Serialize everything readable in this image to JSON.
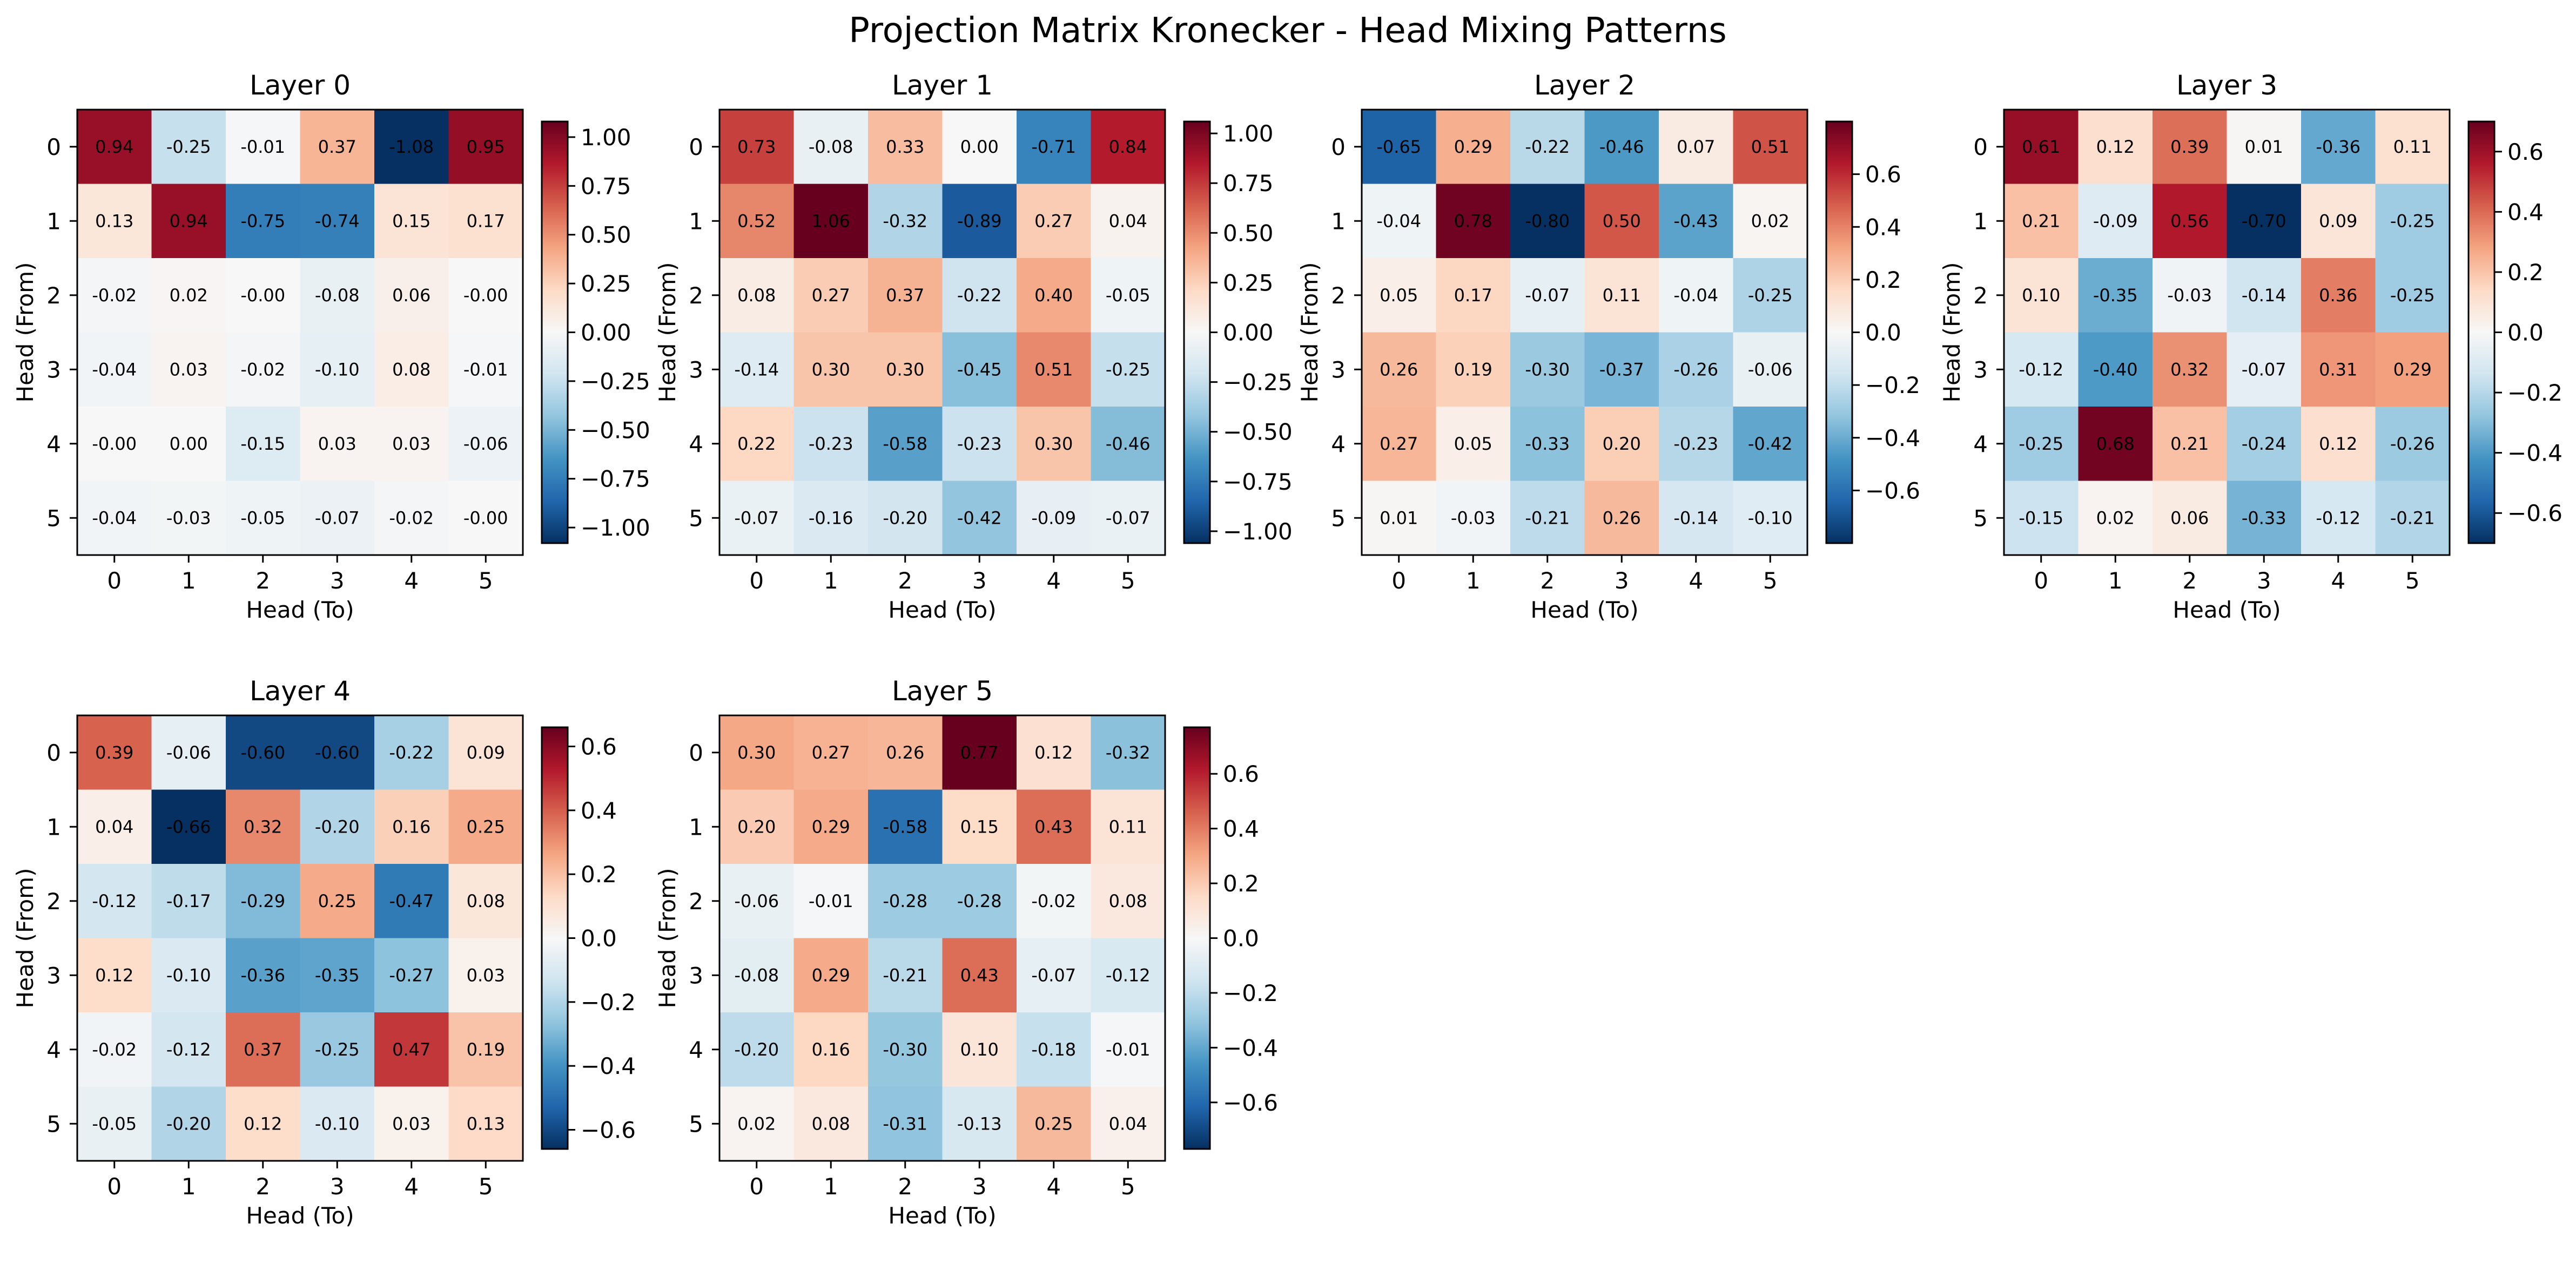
{
  "figure": {
    "title": "Projection Matrix Kronecker - Head Mixing Patterns"
  },
  "colormap": {
    "name": "RdBu_r",
    "stops": [
      "#053061",
      "#2166ac",
      "#4393c3",
      "#92c5de",
      "#d1e5f0",
      "#f7f7f7",
      "#fddbc7",
      "#f4a582",
      "#d6604d",
      "#b2182b",
      "#67001f"
    ]
  },
  "chart_data": [
    {
      "type": "heatmap",
      "title": "Layer 0",
      "xlabel": "Head (To)",
      "ylabel": "Head (From)",
      "x_ticks": [
        "0",
        "1",
        "2",
        "3",
        "4",
        "5"
      ],
      "y_ticks": [
        "0",
        "1",
        "2",
        "3",
        "4",
        "5"
      ],
      "vmin": -1.08,
      "vmax": 1.08,
      "colorbar_ticks": [
        "-1.00",
        "-0.75",
        "-0.50",
        "-0.25",
        "0.00",
        "0.25",
        "0.50",
        "0.75",
        "1.00"
      ],
      "matrix": [
        [
          "0.94",
          "-0.25",
          "-0.01",
          "0.37",
          "-1.08",
          "0.95"
        ],
        [
          "0.13",
          "0.94",
          "-0.75",
          "-0.74",
          "0.15",
          "0.17"
        ],
        [
          "-0.02",
          "0.02",
          "-0.00",
          "-0.08",
          "0.06",
          "-0.00"
        ],
        [
          "-0.04",
          "0.03",
          "-0.02",
          "-0.10",
          "0.08",
          "-0.01"
        ],
        [
          "-0.00",
          "0.00",
          "-0.15",
          "0.03",
          "0.03",
          "-0.06"
        ],
        [
          "-0.04",
          "-0.03",
          "-0.05",
          "-0.07",
          "-0.02",
          "-0.00"
        ]
      ]
    },
    {
      "type": "heatmap",
      "title": "Layer 1",
      "xlabel": "Head (To)",
      "ylabel": "Head (From)",
      "x_ticks": [
        "0",
        "1",
        "2",
        "3",
        "4",
        "5"
      ],
      "y_ticks": [
        "0",
        "1",
        "2",
        "3",
        "4",
        "5"
      ],
      "vmin": -1.06,
      "vmax": 1.06,
      "colorbar_ticks": [
        "-1.00",
        "-0.75",
        "-0.50",
        "-0.25",
        "0.00",
        "0.25",
        "0.50",
        "0.75",
        "1.00"
      ],
      "matrix": [
        [
          "0.73",
          "-0.08",
          "0.33",
          "0.00",
          "-0.71",
          "0.84"
        ],
        [
          "0.52",
          "1.06",
          "-0.32",
          "-0.89",
          "0.27",
          "0.04"
        ],
        [
          "0.08",
          "0.27",
          "0.37",
          "-0.22",
          "0.40",
          "-0.05"
        ],
        [
          "-0.14",
          "0.30",
          "0.30",
          "-0.45",
          "0.51",
          "-0.25"
        ],
        [
          "0.22",
          "-0.23",
          "-0.58",
          "-0.23",
          "0.30",
          "-0.46"
        ],
        [
          "-0.07",
          "-0.16",
          "-0.20",
          "-0.42",
          "-0.09",
          "-0.07"
        ]
      ]
    },
    {
      "type": "heatmap",
      "title": "Layer 2",
      "xlabel": "Head (To)",
      "ylabel": "Head (From)",
      "x_ticks": [
        "0",
        "1",
        "2",
        "3",
        "4",
        "5"
      ],
      "y_ticks": [
        "0",
        "1",
        "2",
        "3",
        "4",
        "5"
      ],
      "vmin": -0.8,
      "vmax": 0.8,
      "colorbar_ticks": [
        "-0.6",
        "-0.4",
        "-0.2",
        "0.0",
        "0.2",
        "0.4",
        "0.6"
      ],
      "matrix": [
        [
          "-0.65",
          "0.29",
          "-0.22",
          "-0.46",
          "0.07",
          "0.51"
        ],
        [
          "-0.04",
          "0.78",
          "-0.80",
          "0.50",
          "-0.43",
          "0.02"
        ],
        [
          "0.05",
          "0.17",
          "-0.07",
          "0.11",
          "-0.04",
          "-0.25"
        ],
        [
          "0.26",
          "0.19",
          "-0.30",
          "-0.37",
          "-0.26",
          "-0.06"
        ],
        [
          "0.27",
          "0.05",
          "-0.33",
          "0.20",
          "-0.23",
          "-0.42"
        ],
        [
          "0.01",
          "-0.03",
          "-0.21",
          "0.26",
          "-0.14",
          "-0.10"
        ]
      ]
    },
    {
      "type": "heatmap",
      "title": "Layer 3",
      "xlabel": "Head (To)",
      "ylabel": "Head (From)",
      "x_ticks": [
        "0",
        "1",
        "2",
        "3",
        "4",
        "5"
      ],
      "y_ticks": [
        "0",
        "1",
        "2",
        "3",
        "4",
        "5"
      ],
      "vmin": -0.7,
      "vmax": 0.7,
      "colorbar_ticks": [
        "-0.6",
        "-0.4",
        "-0.2",
        "0.0",
        "0.2",
        "0.4",
        "0.6"
      ],
      "matrix": [
        [
          "0.61",
          "0.12",
          "0.39",
          "0.01",
          "-0.36",
          "0.11"
        ],
        [
          "0.21",
          "-0.09",
          "0.56",
          "-0.70",
          "0.09",
          "-0.25"
        ],
        [
          "0.10",
          "-0.35",
          "-0.03",
          "-0.14",
          "0.36",
          "-0.25"
        ],
        [
          "-0.12",
          "-0.40",
          "0.32",
          "-0.07",
          "0.31",
          "0.29"
        ],
        [
          "-0.25",
          "0.68",
          "0.21",
          "-0.24",
          "0.12",
          "-0.26"
        ],
        [
          "-0.15",
          "0.02",
          "0.06",
          "-0.33",
          "-0.12",
          "-0.21"
        ]
      ]
    },
    {
      "type": "heatmap",
      "title": "Layer 4",
      "xlabel": "Head (To)",
      "ylabel": "Head (From)",
      "x_ticks": [
        "0",
        "1",
        "2",
        "3",
        "4",
        "5"
      ],
      "y_ticks": [
        "0",
        "1",
        "2",
        "3",
        "4",
        "5"
      ],
      "vmin": -0.66,
      "vmax": 0.66,
      "colorbar_ticks": [
        "-0.6",
        "-0.4",
        "-0.2",
        "0.0",
        "0.2",
        "0.4",
        "0.6"
      ],
      "matrix": [
        [
          "0.39",
          "-0.06",
          "-0.60",
          "-0.60",
          "-0.22",
          "0.09"
        ],
        [
          "0.04",
          "-0.66",
          "0.32",
          "-0.20",
          "0.16",
          "0.25"
        ],
        [
          "-0.12",
          "-0.17",
          "-0.29",
          "0.25",
          "-0.47",
          "0.08"
        ],
        [
          "0.12",
          "-0.10",
          "-0.36",
          "-0.35",
          "-0.27",
          "0.03"
        ],
        [
          "-0.02",
          "-0.12",
          "0.37",
          "-0.25",
          "0.47",
          "0.19"
        ],
        [
          "-0.05",
          "-0.20",
          "0.12",
          "-0.10",
          "0.03",
          "0.13"
        ]
      ]
    },
    {
      "type": "heatmap",
      "title": "Layer 5",
      "xlabel": "Head (To)",
      "ylabel": "Head (From)",
      "x_ticks": [
        "0",
        "1",
        "2",
        "3",
        "4",
        "5"
      ],
      "y_ticks": [
        "0",
        "1",
        "2",
        "3",
        "4",
        "5"
      ],
      "vmin": -0.77,
      "vmax": 0.77,
      "colorbar_ticks": [
        "-0.6",
        "-0.4",
        "-0.2",
        "0.0",
        "0.2",
        "0.4",
        "0.6"
      ],
      "matrix": [
        [
          "0.30",
          "0.27",
          "0.26",
          "0.77",
          "0.12",
          "-0.32"
        ],
        [
          "0.20",
          "0.29",
          "-0.58",
          "0.15",
          "0.43",
          "0.11"
        ],
        [
          "-0.06",
          "-0.01",
          "-0.28",
          "-0.28",
          "-0.02",
          "0.08"
        ],
        [
          "-0.08",
          "0.29",
          "-0.21",
          "0.43",
          "-0.07",
          "-0.12"
        ],
        [
          "-0.20",
          "0.16",
          "-0.30",
          "0.10",
          "-0.18",
          "-0.01"
        ],
        [
          "0.02",
          "0.08",
          "-0.31",
          "-0.13",
          "0.25",
          "0.04"
        ]
      ]
    }
  ]
}
